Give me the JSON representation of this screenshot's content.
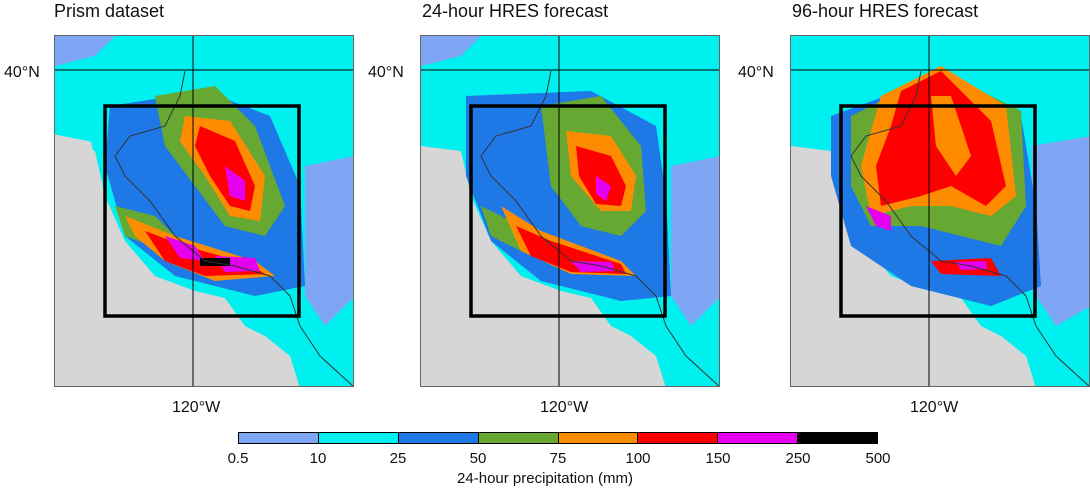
{
  "panels": [
    {
      "title": "Prism dataset",
      "lat_label": "40°N",
      "lon_label": "120°W",
      "variant": "prism"
    },
    {
      "title": "24-hour HRES forecast",
      "lat_label": "40°N",
      "lon_label": "120°W",
      "variant": "hres24"
    },
    {
      "title": "96-hour HRES forecast",
      "lat_label": "40°N",
      "lon_label": "120°W",
      "variant": "hres96"
    }
  ],
  "colorbar": {
    "label": "24-hour precipitation (mm)",
    "ticks": [
      "0.5",
      "10",
      "25",
      "50",
      "75",
      "100",
      "150",
      "250",
      "500"
    ],
    "colors": [
      "#7fa6f5",
      "#00f0f0",
      "#1e78e6",
      "#66a832",
      "#ff8c00",
      "#ff0000",
      "#e600f0",
      "#000000"
    ]
  },
  "map_colors": {
    "land": "#d6d6d6",
    "ocean_white": "#ffffff",
    "grid": "#000000",
    "box": "#000000"
  }
}
